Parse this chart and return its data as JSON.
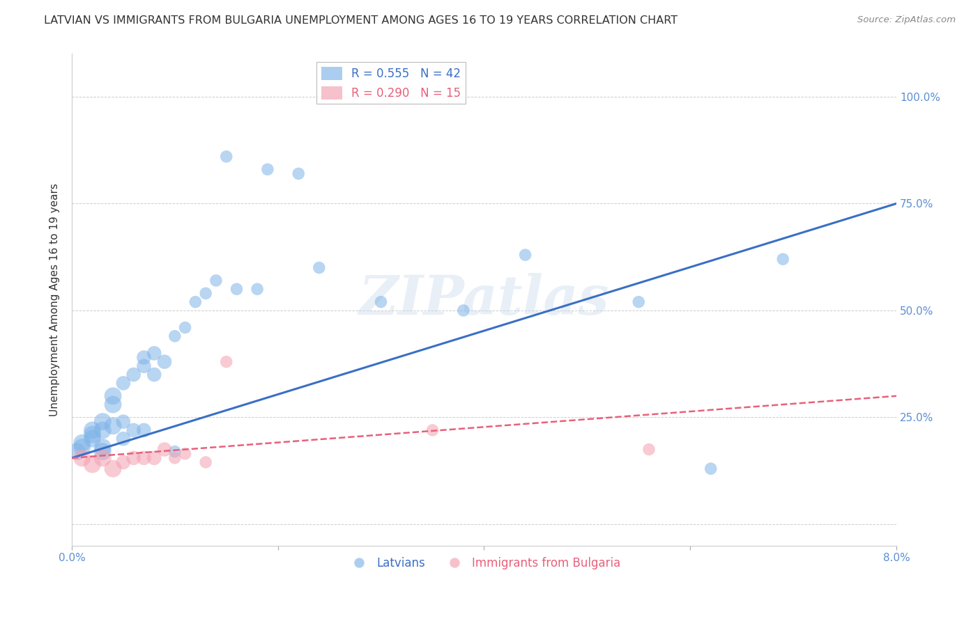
{
  "title": "LATVIAN VS IMMIGRANTS FROM BULGARIA UNEMPLOYMENT AMONG AGES 16 TO 19 YEARS CORRELATION CHART",
  "source": "Source: ZipAtlas.com",
  "ylabel": "Unemployment Among Ages 16 to 19 years",
  "latvian_R": 0.555,
  "latvian_N": 42,
  "bulgarian_R": 0.29,
  "bulgarian_N": 15,
  "latvian_color": "#7EB3E8",
  "bulgarian_color": "#F4A0B0",
  "trendline_latvian_color": "#3A6FC4",
  "trendline_bulgarian_color": "#E8607A",
  "latvian_x": [
    0.0005,
    0.001,
    0.001,
    0.002,
    0.002,
    0.002,
    0.003,
    0.003,
    0.003,
    0.003,
    0.004,
    0.004,
    0.004,
    0.005,
    0.005,
    0.005,
    0.006,
    0.006,
    0.007,
    0.007,
    0.007,
    0.008,
    0.008,
    0.009,
    0.01,
    0.01,
    0.011,
    0.012,
    0.013,
    0.014,
    0.015,
    0.016,
    0.018,
    0.019,
    0.022,
    0.024,
    0.03,
    0.038,
    0.044,
    0.055,
    0.062,
    0.069
  ],
  "latvian_y": [
    0.17,
    0.18,
    0.19,
    0.2,
    0.21,
    0.22,
    0.18,
    0.22,
    0.24,
    0.17,
    0.28,
    0.3,
    0.23,
    0.24,
    0.2,
    0.33,
    0.35,
    0.22,
    0.37,
    0.39,
    0.22,
    0.4,
    0.35,
    0.38,
    0.44,
    0.17,
    0.46,
    0.52,
    0.54,
    0.57,
    0.86,
    0.55,
    0.55,
    0.83,
    0.82,
    0.6,
    0.52,
    0.5,
    0.63,
    0.52,
    0.13,
    0.62
  ],
  "bulgarian_x": [
    0.001,
    0.002,
    0.003,
    0.004,
    0.005,
    0.006,
    0.007,
    0.008,
    0.009,
    0.01,
    0.011,
    0.013,
    0.015,
    0.035,
    0.056
  ],
  "bulgarian_y": [
    0.155,
    0.14,
    0.155,
    0.13,
    0.145,
    0.155,
    0.155,
    0.155,
    0.175,
    0.155,
    0.165,
    0.145,
    0.38,
    0.22,
    0.175
  ],
  "latvian_trend": [
    0.155,
    0.75
  ],
  "bulgarian_trend": [
    0.155,
    0.3
  ],
  "watermark": "ZIPatlas",
  "figsize": [
    14.06,
    8.92
  ],
  "dpi": 100,
  "xlim": [
    0.0,
    0.08
  ],
  "ylim": [
    -0.05,
    1.1
  ],
  "y_ticks": [
    0.0,
    0.25,
    0.5,
    0.75,
    1.0
  ],
  "y_tick_labels": [
    "",
    "25.0%",
    "50.0%",
    "75.0%",
    "100.0%"
  ],
  "x_tick_positions": [
    0.0,
    0.02,
    0.04,
    0.06,
    0.08
  ],
  "x_tick_labels": [
    "0.0%",
    "",
    "",
    "",
    "8.0%"
  ],
  "background_color": "#FFFFFF",
  "title_color": "#333333",
  "tick_label_color": "#5B8FD4",
  "grid_color": "#CCCCCC",
  "legend_label_latvian": "Latvians",
  "legend_label_bulgarian": "Immigrants from Bulgaria"
}
